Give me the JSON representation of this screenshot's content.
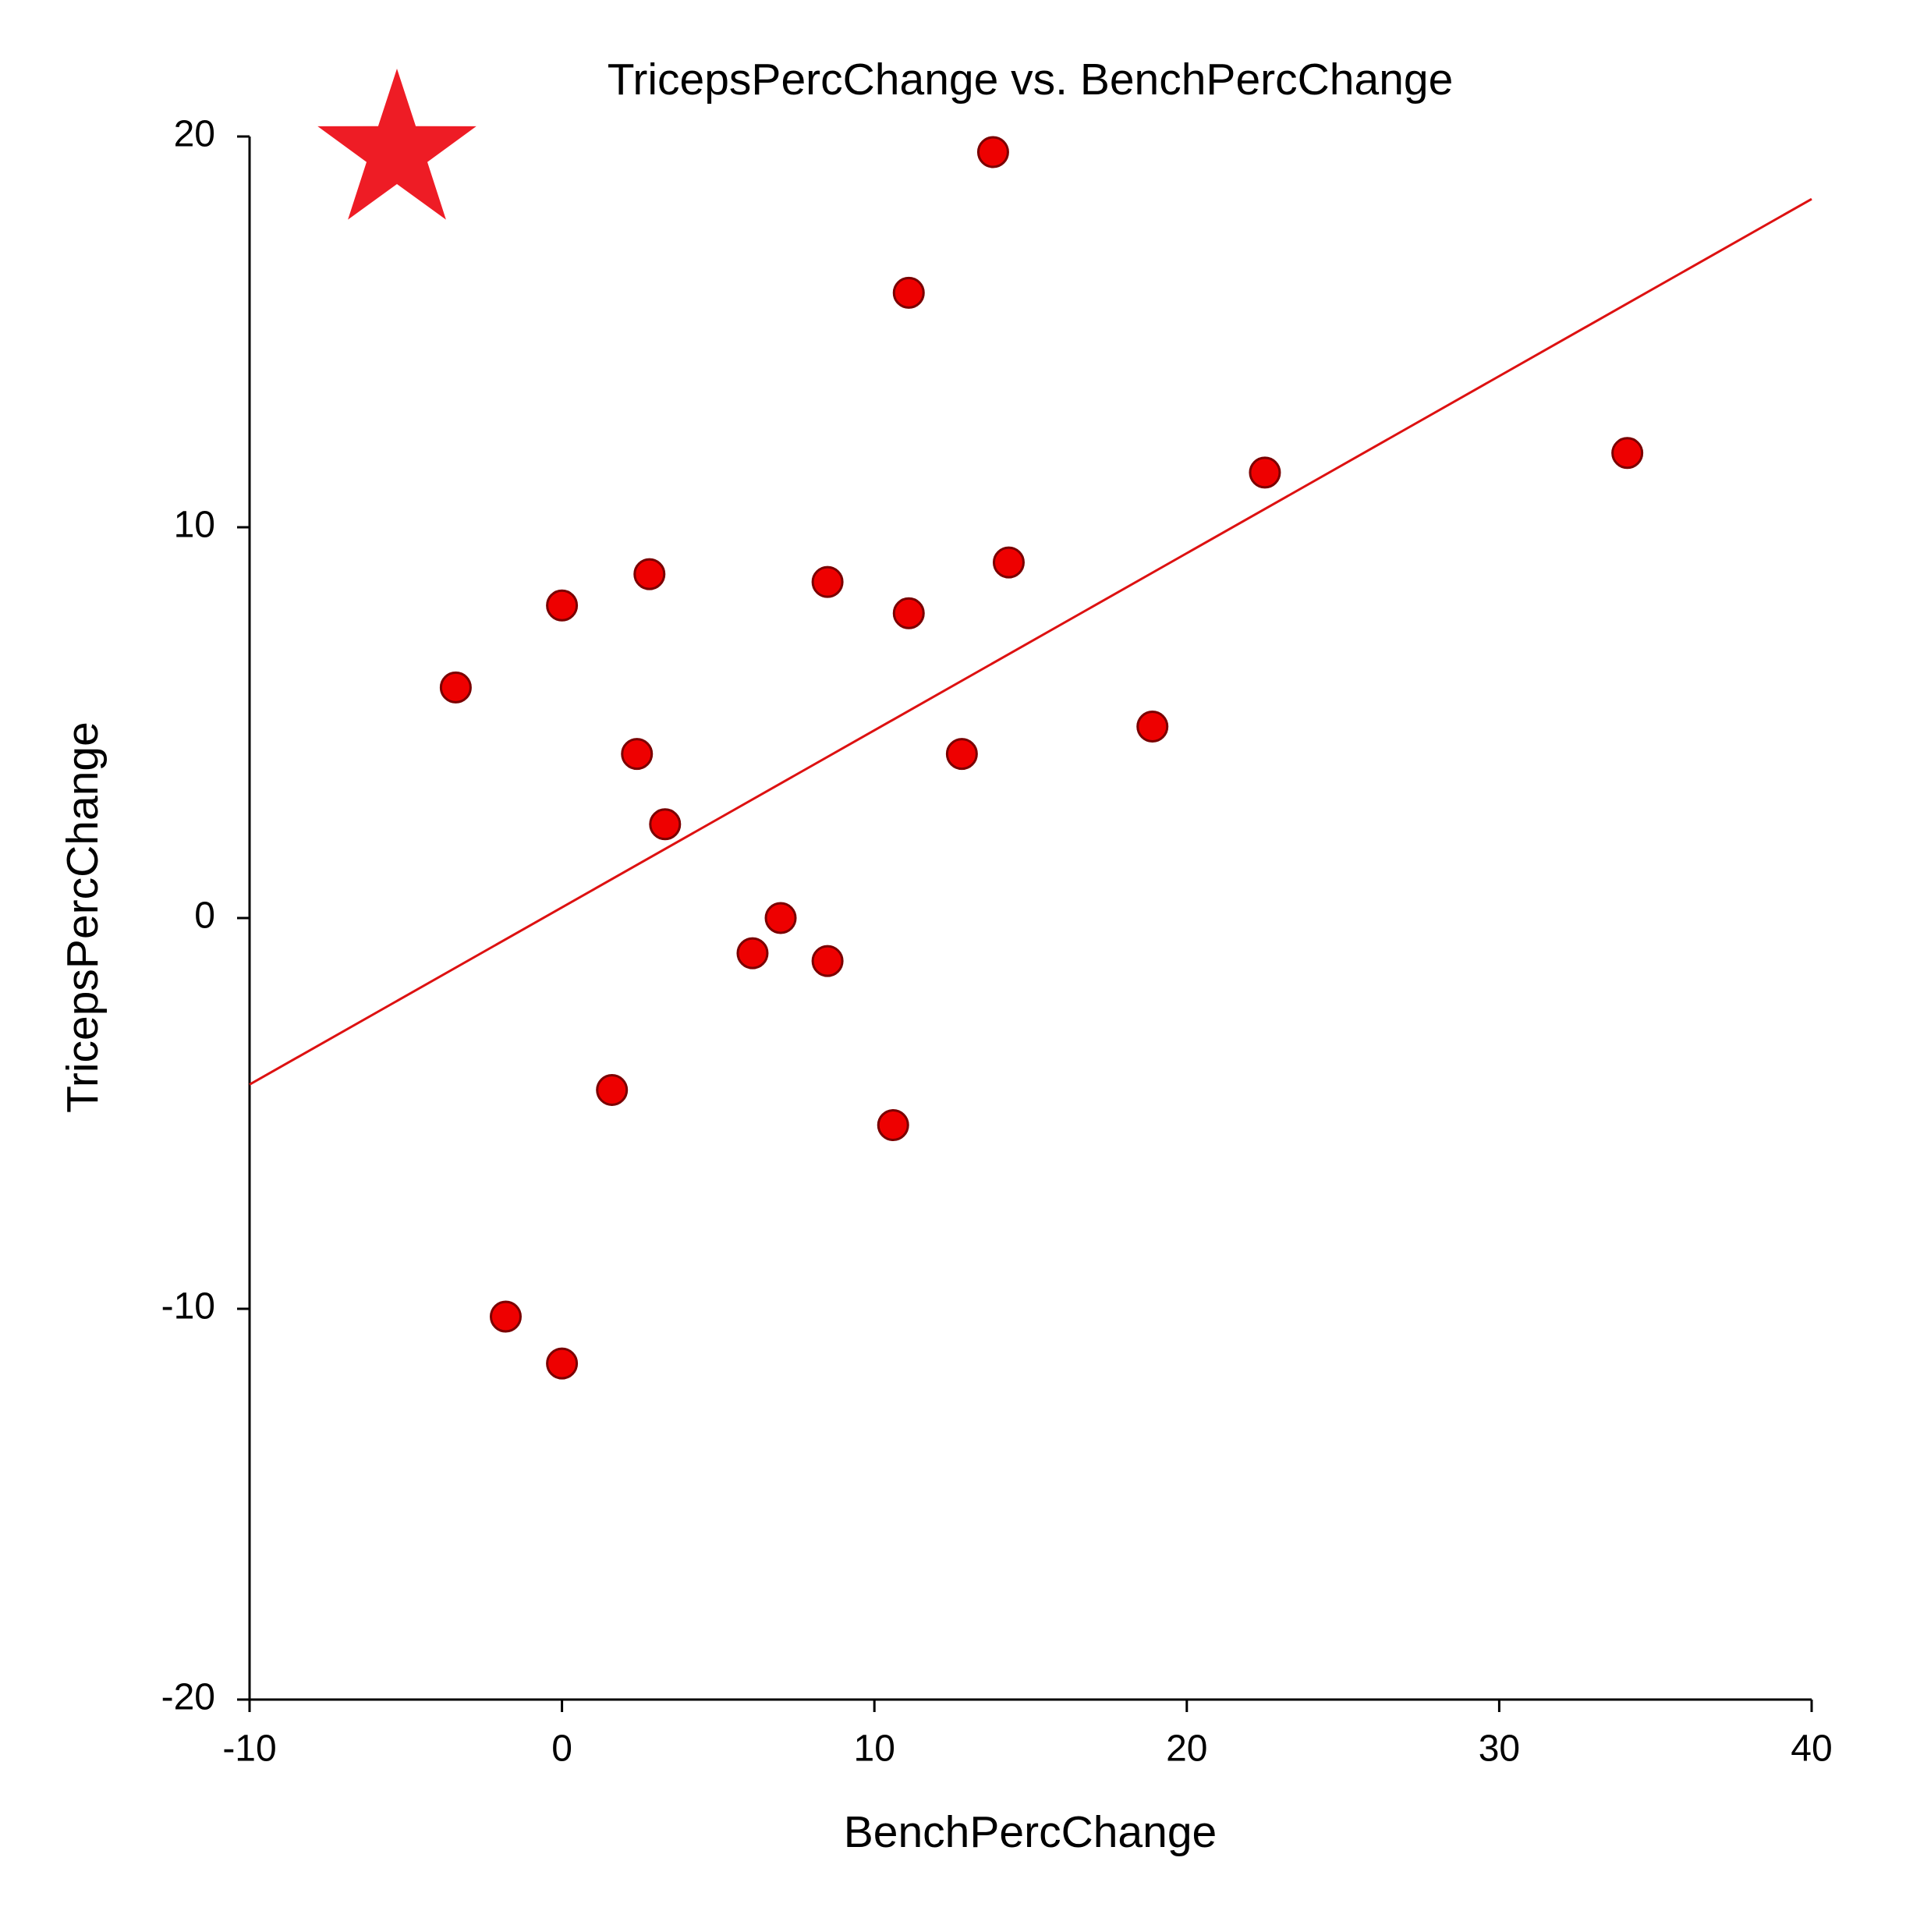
{
  "chart_data": {
    "type": "scatter",
    "title": "TricepsPercChange vs. BenchPercChange",
    "x_label": "BenchPercChange",
    "y_label": "TricepsPercChange",
    "series": [
      {
        "name": "TricepsPercChange",
        "color": "#ee0000",
        "x": [
          13.8,
          11.1,
          34.1,
          22.5,
          14.3,
          2.8,
          8.5,
          0,
          11.1,
          -3.4,
          18.9,
          2.4,
          12.8,
          3.3,
          7.0,
          6.1,
          8.5,
          1.6,
          10.6,
          -1.8,
          0
        ],
        "values": [
          19.6,
          16.0,
          11.9,
          11.4,
          9.1,
          8.8,
          8.6,
          8.0,
          7.8,
          5.9,
          4.9,
          4.2,
          4.2,
          2.4,
          0,
          -0.9,
          -1.1,
          -4.4,
          -5.3,
          -10.2,
          -11.4
        ]
      }
    ],
    "trendline": {
      "color": "#dd1111",
      "x": [
        -10,
        40
      ],
      "values": [
        -4.26,
        18.4
      ]
    },
    "xlim": [
      -10,
      40
    ],
    "xticks": [
      -10,
      0,
      10,
      20,
      30,
      40
    ],
    "ylim": [
      -20,
      20
    ],
    "yticks": [
      -20,
      -10,
      0,
      10,
      20
    ],
    "grid": false
  }
}
